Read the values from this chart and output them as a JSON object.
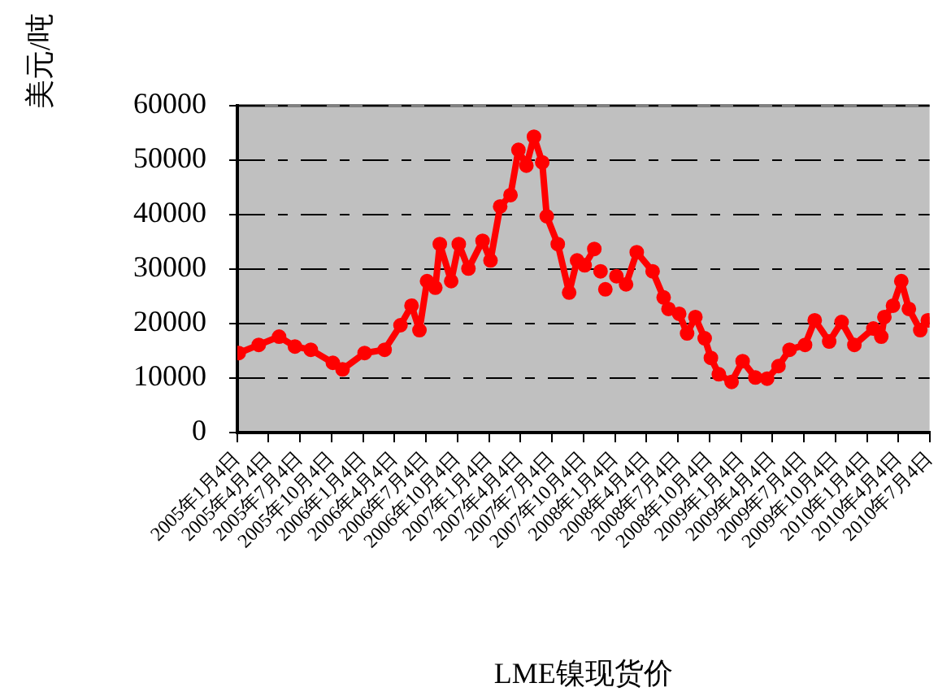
{
  "chart_data": {
    "type": "line",
    "xlabel": "LME镍现货价",
    "ylabel": "美元/吨",
    "xlim": [
      "2005-01-04",
      "2010-07-04"
    ],
    "xticks": [
      {
        "value": "2005-01-04",
        "label": "2005年1月4日"
      },
      {
        "value": "2005-04-04",
        "label": "2005年4月4日"
      },
      {
        "value": "2005-07-04",
        "label": "2005年7月4日"
      },
      {
        "value": "2005-10-04",
        "label": "2005年10月4日"
      },
      {
        "value": "2006-01-04",
        "label": "2006年1月4日"
      },
      {
        "value": "2006-04-04",
        "label": "2006年4月4日"
      },
      {
        "value": "2006-07-04",
        "label": "2006年7月4日"
      },
      {
        "value": "2006-10-04",
        "label": "2006年10月4日"
      },
      {
        "value": "2007-01-04",
        "label": "2007年1月4日"
      },
      {
        "value": "2007-04-04",
        "label": "2007年4月4日"
      },
      {
        "value": "2007-07-04",
        "label": "2007年7月4日"
      },
      {
        "value": "2007-10-04",
        "label": "2007年10月4日"
      },
      {
        "value": "2008-01-04",
        "label": "2008年1月4日"
      },
      {
        "value": "2008-04-04",
        "label": "2008年4月4日"
      },
      {
        "value": "2008-07-04",
        "label": "2008年7月4日"
      },
      {
        "value": "2008-10-04",
        "label": "2008年10月4日"
      },
      {
        "value": "2009-01-04",
        "label": "2009年1月4日"
      },
      {
        "value": "2009-04-04",
        "label": "2009年4月4日"
      },
      {
        "value": "2009-07-04",
        "label": "2009年7月4日"
      },
      {
        "value": "2009-10-04",
        "label": "2009年10月4日"
      },
      {
        "value": "2010-01-04",
        "label": "2010年1月4日"
      },
      {
        "value": "2010-04-04",
        "label": "2010年4月4日"
      },
      {
        "value": "2010-07-04",
        "label": "2010年7月4日"
      }
    ],
    "ylim": [
      0,
      60000
    ],
    "yticks": [
      0,
      10000,
      20000,
      30000,
      40000,
      50000,
      60000
    ],
    "grid": "y",
    "legend": false,
    "marker": "circle",
    "line_style": "solid",
    "series": [
      {
        "color": "#ff0000",
        "x": [
          "2005-01-08",
          "2005-03-07",
          "2005-05-05",
          "2005-06-20",
          "2005-08-05",
          "2005-10-08",
          "2005-11-05",
          "2006-01-08",
          "2006-03-07",
          "2006-04-22",
          "2006-05-24",
          "2006-06-16",
          "2006-07-08",
          "2006-08-01",
          "2006-08-14",
          "2006-09-16",
          "2006-10-08",
          "2006-11-05",
          "2006-12-16",
          "2007-01-08",
          "2007-02-05",
          "2007-03-07",
          "2007-03-30",
          "2007-04-22",
          "2007-05-14",
          "2007-06-07",
          "2007-06-20",
          "2007-07-22",
          "2007-08-24",
          "2007-09-16",
          "2007-10-08",
          "2007-11-05",
          "2007-11-14",
          "2007-11-23",
          "2007-11-30",
          "2007-12-07",
          "2007-12-20",
          "2008-01-08",
          "2008-02-05",
          "2008-03-07",
          "2008-04-22",
          "2008-05-24",
          "2008-06-07",
          "2008-07-08",
          "2008-07-31",
          "2008-08-24",
          "2008-09-20",
          "2008-10-08",
          "2008-10-31",
          "2008-12-07",
          "2009-01-08",
          "2009-02-14",
          "2009-03-20",
          "2009-04-22",
          "2009-05-24",
          "2009-07-08",
          "2009-08-05",
          "2009-09-16",
          "2009-10-22",
          "2009-11-28",
          "2010-01-22",
          "2010-02-14",
          "2010-02-23",
          "2010-03-20",
          "2010-04-13",
          "2010-05-05",
          "2010-06-07",
          "2010-06-29"
        ],
        "values": [
          14600,
          16100,
          17600,
          15800,
          15200,
          12800,
          11600,
          14600,
          15200,
          19700,
          23300,
          18800,
          27800,
          26600,
          34600,
          27800,
          34600,
          30100,
          35200,
          31600,
          41500,
          43600,
          51900,
          49000,
          54300,
          49600,
          39700,
          34600,
          25700,
          31600,
          30700,
          33700,
          null,
          29600,
          null,
          26300,
          null,
          28700,
          27200,
          33100,
          29600,
          24800,
          22700,
          21800,
          18200,
          21200,
          17300,
          13700,
          10700,
          9300,
          13100,
          10100,
          9900,
          12200,
          15200,
          16100,
          20600,
          16700,
          20300,
          16100,
          19100,
          17600,
          21200,
          23300,
          27800,
          22700,
          18800,
          20600
        ]
      }
    ]
  }
}
